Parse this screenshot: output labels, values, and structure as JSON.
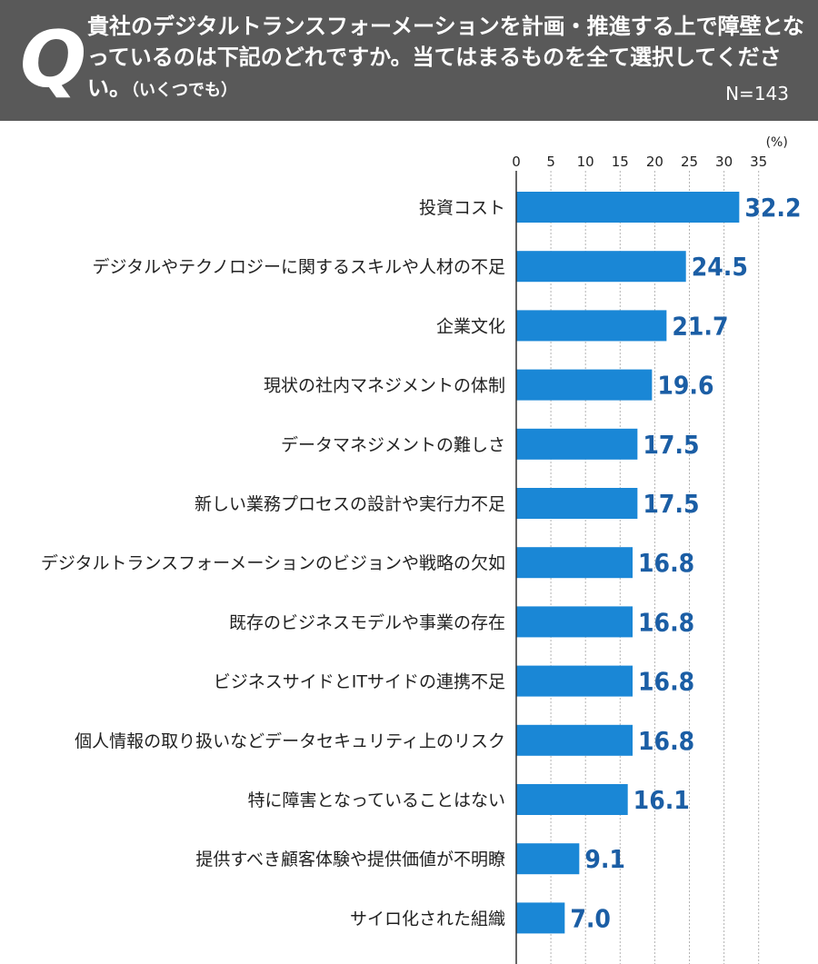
{
  "question": {
    "mark": "Q",
    "text": "貴社のデジタルトランスフォーメーションを計画・推進する上で障壁となっているのは下記のどれですか。当てはまるものを全て選択してください。",
    "note": "（いくつでも）",
    "sample": "N=143"
  },
  "colors": {
    "header_bg": "#595959",
    "bar": "#1a87d6",
    "value_text": "#1b5ea5",
    "grid": "#b3b3b3"
  },
  "chart_data": {
    "type": "bar",
    "orientation": "horizontal",
    "unit": "(%)",
    "xlim": [
      0,
      35
    ],
    "ticks": [
      0,
      5,
      10,
      15,
      20,
      25,
      30,
      35
    ],
    "grid": true,
    "categories": [
      "投資コスト",
      "デジタルやテクノロジーに関するスキルや人材の不足",
      "企業文化",
      "現状の社内マネジメントの体制",
      "データマネジメントの難しさ",
      "新しい業務プロセスの設計や実行力不足",
      "デジタルトランスフォーメーションのビジョンや戦略の欠如",
      "既存のビジネスモデルや事業の存在",
      "ビジネスサイドとITサイドの連携不足",
      "個人情報の取り扱いなどデータセキュリティ上のリスク",
      "特に障害となっていることはない",
      "提供すべき顧客体験や提供価値が不明瞭",
      "サイロ化された組織"
    ],
    "values": [
      32.2,
      24.5,
      21.7,
      19.6,
      17.5,
      17.5,
      16.8,
      16.8,
      16.8,
      16.8,
      16.1,
      9.1,
      7.0
    ],
    "value_labels": [
      "32.2",
      "24.5",
      "21.7",
      "19.6",
      "17.5",
      "17.5",
      "16.8",
      "16.8",
      "16.8",
      "16.8",
      "16.1",
      "9.1",
      "7.0"
    ]
  }
}
